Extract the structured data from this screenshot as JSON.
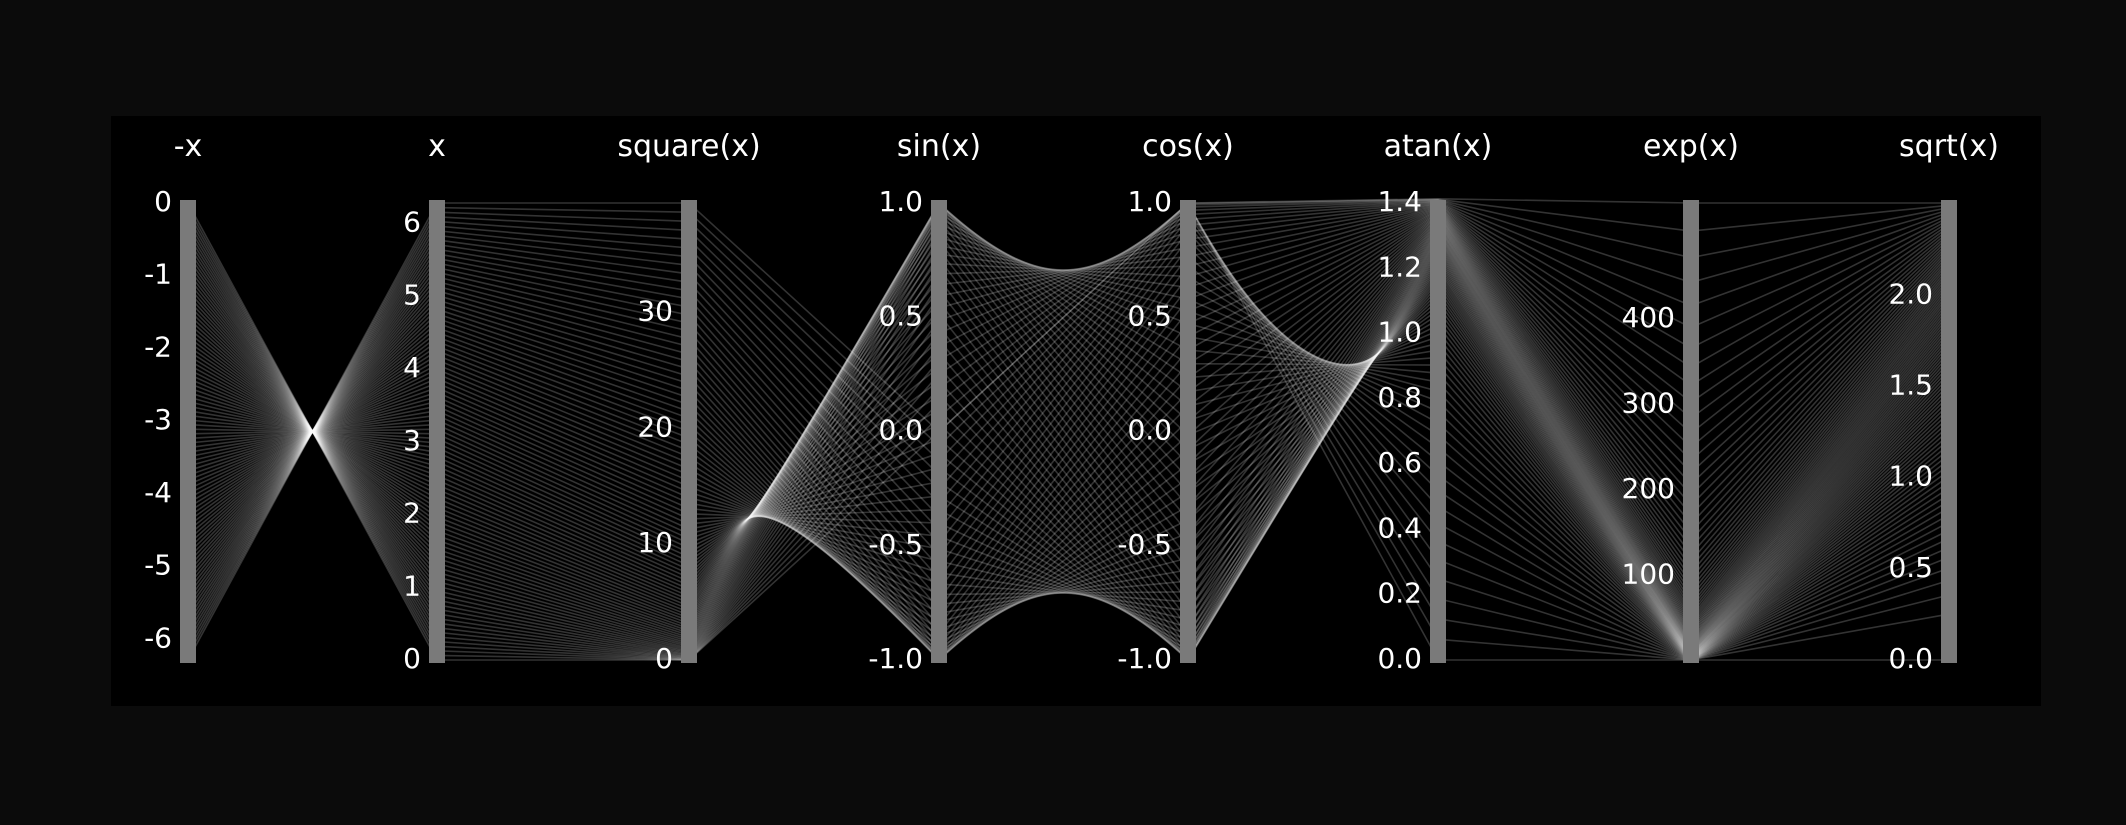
{
  "colors": {
    "background": "#0b0b0b",
    "panel": "#000000",
    "axis_bar": "#7a7a7a",
    "lines": "#ffffff",
    "text": "#ffffff"
  },
  "chart_data": {
    "type": "parallel_coordinates",
    "title": "",
    "line_count": 100,
    "x_domain": [
      0,
      6.2832
    ],
    "axes": [
      {
        "label": "-x",
        "fn": "neg",
        "range": [
          -6.2832,
          0
        ],
        "ticks": [
          "0",
          "-1",
          "-2",
          "-3",
          "-4",
          "-5",
          "-6"
        ],
        "tick_values": [
          0,
          -1,
          -2,
          -3,
          -4,
          -5,
          -6
        ]
      },
      {
        "label": "x",
        "fn": "id",
        "range": [
          0,
          6.2832
        ],
        "ticks": [
          "6",
          "5",
          "4",
          "3",
          "2",
          "1",
          "0"
        ],
        "tick_values": [
          6,
          5,
          4,
          3,
          2,
          1,
          0
        ]
      },
      {
        "label": "square(x)",
        "fn": "square",
        "range": [
          0,
          39.478
        ],
        "ticks": [
          "30",
          "20",
          "10",
          "0"
        ],
        "tick_values": [
          30,
          20,
          10,
          0
        ]
      },
      {
        "label": "sin(x)",
        "fn": "sin",
        "range": [
          -1,
          1
        ],
        "ticks": [
          "1.0",
          "0.5",
          "0.0",
          "-0.5",
          "-1.0"
        ],
        "tick_values": [
          1,
          0.5,
          0,
          -0.5,
          -1
        ]
      },
      {
        "label": "cos(x)",
        "fn": "cos",
        "range": [
          -1,
          1
        ],
        "ticks": [
          "1.0",
          "0.5",
          "0.0",
          "-0.5",
          "-1.0"
        ],
        "tick_values": [
          1,
          0.5,
          0,
          -0.5,
          -1
        ]
      },
      {
        "label": "atan(x)",
        "fn": "atan",
        "range": [
          0,
          1.4
        ],
        "ticks": [
          "1.4",
          "1.2",
          "1.0",
          "0.8",
          "0.6",
          "0.4",
          "0.2",
          "0.0"
        ],
        "tick_values": [
          1.4,
          1.2,
          1.0,
          0.8,
          0.6,
          0.4,
          0.2,
          0.0
        ]
      },
      {
        "label": "exp(x)",
        "fn": "exp",
        "range": [
          1,
          535.49
        ],
        "ticks": [
          "400",
          "300",
          "200",
          "100"
        ],
        "tick_values": [
          400,
          300,
          200,
          100
        ]
      },
      {
        "label": "sqrt(x)",
        "fn": "sqrt",
        "range": [
          0,
          2.5066
        ],
        "ticks": [
          "2.0",
          "1.5",
          "1.0",
          "0.5",
          "0.0"
        ],
        "tick_values": [
          2.0,
          1.5,
          1.0,
          0.5,
          0.0
        ]
      }
    ]
  }
}
